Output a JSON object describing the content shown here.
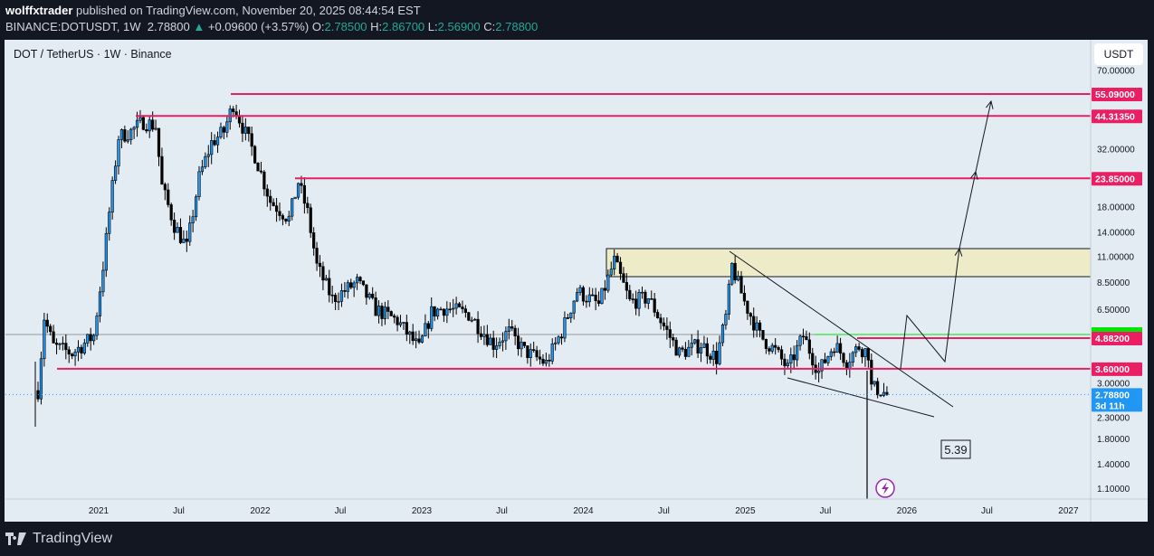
{
  "header": {
    "author": "wolffxtrader",
    "published": "published on TradingView.com, November 20, 2025 08:44:54 EST",
    "symbol": "BINANCE:DOTUSDT, 1W",
    "last": "2.78800",
    "change": "+0.09600 (+3.57%)",
    "o_label": "O:",
    "o": "2.78500",
    "h_label": "H:",
    "h": "2.86700",
    "l_label": "L:",
    "l": "2.56900",
    "c_label": "C:",
    "c": "2.78800"
  },
  "chart_title": "DOT / TetherUS · 1W · Binance",
  "currency": "USDT",
  "footer": {
    "brand": "TradingView"
  },
  "colors": {
    "up": "#2196f3",
    "down": "#000000",
    "levels": "#e91e63",
    "zone": "#eeecc8",
    "green_line": "#00e600",
    "last_price": "#2196f3",
    "background": "#e3ebf3"
  },
  "chart_data": {
    "type": "candlestick",
    "scale": "log",
    "ylim": [
      1.05,
      75
    ],
    "xlim": [
      "2020-07-01",
      "2027-03-01"
    ],
    "y_ticks": [
      "70.00000",
      "32.00000",
      "18.00000",
      "14.00000",
      "11.00000",
      "8.50000",
      "6.50000",
      "3.00000",
      "2.30000",
      "1.80000",
      "1.40000",
      "1.10000"
    ],
    "x_ticks": [
      {
        "label": "2021",
        "date": "2021-01-01"
      },
      {
        "label": "Jul",
        "date": "2021-07-01"
      },
      {
        "label": "2022",
        "date": "2022-01-01"
      },
      {
        "label": "Jul",
        "date": "2022-07-01"
      },
      {
        "label": "2023",
        "date": "2023-01-01"
      },
      {
        "label": "Jul",
        "date": "2023-07-01"
      },
      {
        "label": "2024",
        "date": "2024-01-01"
      },
      {
        "label": "Jul",
        "date": "2024-07-01"
      },
      {
        "label": "2025",
        "date": "2025-01-01"
      },
      {
        "label": "Jul",
        "date": "2025-07-01"
      },
      {
        "label": "2026",
        "date": "2026-01-01"
      },
      {
        "label": "Jul",
        "date": "2026-07-01"
      },
      {
        "label": "2027",
        "date": "2027-01-01"
      }
    ],
    "approx_closes": [
      [
        "2020-08-17",
        2.9
      ],
      [
        "2020-08-31",
        6.0
      ],
      [
        "2020-09-21",
        4.5
      ],
      [
        "2020-11-02",
        4.2
      ],
      [
        "2020-12-21",
        5.0
      ],
      [
        "2021-01-11",
        10
      ],
      [
        "2021-01-25",
        17
      ],
      [
        "2021-02-15",
        36
      ],
      [
        "2021-03-15",
        38
      ],
      [
        "2021-04-12",
        42
      ],
      [
        "2021-05-10",
        40
      ],
      [
        "2021-05-24",
        22
      ],
      [
        "2021-06-21",
        15
      ],
      [
        "2021-07-19",
        12
      ],
      [
        "2021-08-16",
        24
      ],
      [
        "2021-09-13",
        34
      ],
      [
        "2021-10-11",
        38
      ],
      [
        "2021-11-01",
        50
      ],
      [
        "2021-11-22",
        40
      ],
      [
        "2021-12-20",
        30
      ],
      [
        "2022-01-24",
        19
      ],
      [
        "2022-03-07",
        16
      ],
      [
        "2022-03-28",
        23
      ],
      [
        "2022-04-18",
        17
      ],
      [
        "2022-05-09",
        10
      ],
      [
        "2022-06-13",
        7.2
      ],
      [
        "2022-08-08",
        8.5
      ],
      [
        "2022-09-19",
        6.5
      ],
      [
        "2022-11-07",
        5.8
      ],
      [
        "2022-12-26",
        4.4
      ],
      [
        "2023-01-23",
        6.3
      ],
      [
        "2023-02-20",
        6.6
      ],
      [
        "2023-04-17",
        6.2
      ],
      [
        "2023-06-12",
        4.6
      ],
      [
        "2023-07-17",
        5.2
      ],
      [
        "2023-08-21",
        4.3
      ],
      [
        "2023-10-09",
        3.8
      ],
      [
        "2023-11-13",
        5.2
      ],
      [
        "2023-12-18",
        7.8
      ],
      [
        "2024-02-05",
        6.8
      ],
      [
        "2024-03-11",
        10.5
      ],
      [
        "2024-04-15",
        7.0
      ],
      [
        "2024-05-27",
        7.3
      ],
      [
        "2024-06-24",
        5.8
      ],
      [
        "2024-08-05",
        4.2
      ],
      [
        "2024-09-23",
        4.6
      ],
      [
        "2024-10-28",
        4.0
      ],
      [
        "2024-11-18",
        6.0
      ],
      [
        "2024-12-02",
        10.0
      ],
      [
        "2024-12-30",
        7.0
      ],
      [
        "2025-02-03",
        5.0
      ],
      [
        "2025-03-10",
        4.3
      ],
      [
        "2025-04-07",
        3.6
      ],
      [
        "2025-05-12",
        5.0
      ],
      [
        "2025-06-16",
        3.5
      ],
      [
        "2025-07-21",
        4.6
      ],
      [
        "2025-08-18",
        3.9
      ],
      [
        "2025-09-15",
        4.5
      ],
      [
        "2025-10-06",
        4.2
      ],
      [
        "2025-10-13",
        3.0
      ],
      [
        "2025-11-03",
        2.9
      ],
      [
        "2025-11-17",
        2.788
      ]
    ]
  },
  "price_labels": [
    {
      "text": "55.09000",
      "value": 55.09,
      "color": "#e91e63"
    },
    {
      "text": "44.31350",
      "value": 44.3135,
      "color": "#e91e63"
    },
    {
      "text": "23.85000",
      "value": 23.85,
      "color": "#e91e63"
    },
    {
      "text": "4.88200",
      "value": 4.882,
      "color": "#e91e63"
    },
    {
      "text": "3.60000",
      "value": 3.6,
      "color": "#e91e63"
    },
    {
      "text": "2.78800",
      "value": 2.788,
      "color": "#2196f3",
      "sub": "3d 11h"
    }
  ],
  "annotations": {
    "note_box": "5.39"
  }
}
